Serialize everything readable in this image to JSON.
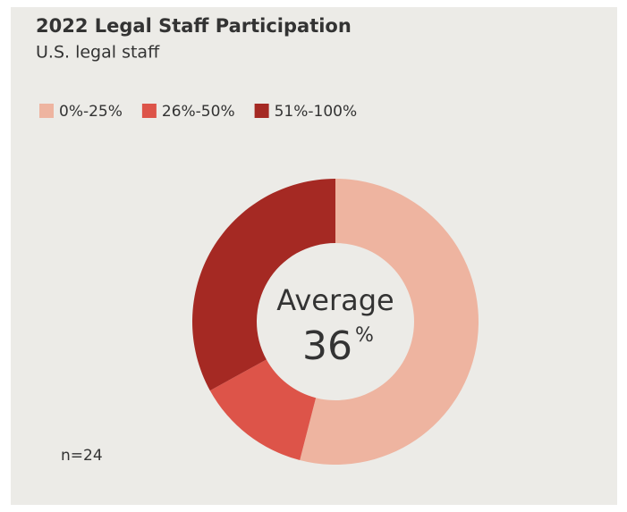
{
  "chart_data": {
    "type": "donut",
    "title": "2022 Legal Staff Participation",
    "subtitle": "U.S. legal staff",
    "categories": [
      "0%-25%",
      "26%-50%",
      "51%-100%"
    ],
    "values": [
      54,
      13,
      33
    ],
    "colors": [
      "#eeb4a0",
      "#dd5449",
      "#a52923"
    ],
    "center_label": "Average",
    "center_value": "36",
    "center_unit": "%",
    "note": "n=24",
    "legend": "top-left"
  }
}
